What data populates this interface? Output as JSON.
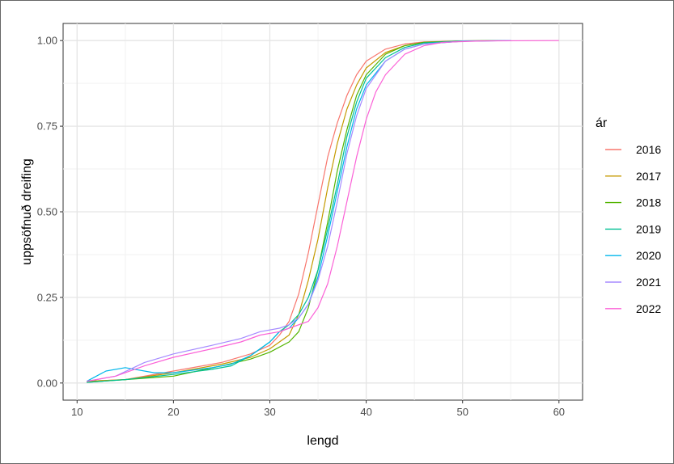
{
  "chart_data": {
    "type": "line",
    "xlabel": "lengd",
    "ylabel": "uppsöfnuð dreifing",
    "xlim": [
      11,
      60
    ],
    "ylim": [
      0,
      1
    ],
    "x_ticks": [
      10,
      20,
      30,
      40,
      50,
      60
    ],
    "x_tick_labels": [
      "10",
      "20",
      "30",
      "40",
      "50",
      "60"
    ],
    "y_ticks": [
      0,
      0.25,
      0.5,
      0.75,
      1.0
    ],
    "y_tick_labels": [
      "0.00",
      "0.25",
      "0.50",
      "0.75",
      "1.00"
    ],
    "grid": true,
    "legend_title": "ár",
    "legend_position": "right",
    "series": [
      {
        "name": "2016",
        "color": "#F8766D",
        "points": [
          [
            11,
            0.005
          ],
          [
            15,
            0.01
          ],
          [
            20,
            0.035
          ],
          [
            25,
            0.06
          ],
          [
            28,
            0.085
          ],
          [
            30,
            0.11
          ],
          [
            31,
            0.14
          ],
          [
            32,
            0.18
          ],
          [
            33,
            0.26
          ],
          [
            34,
            0.38
          ],
          [
            35,
            0.52
          ],
          [
            36,
            0.66
          ],
          [
            37,
            0.76
          ],
          [
            38,
            0.84
          ],
          [
            39,
            0.9
          ],
          [
            40,
            0.94
          ],
          [
            42,
            0.975
          ],
          [
            44,
            0.99
          ],
          [
            46,
            0.996
          ],
          [
            50,
            0.999
          ],
          [
            55,
            1.0
          ]
        ]
      },
      {
        "name": "2017",
        "color": "#C49A00",
        "points": [
          [
            11,
            0.005
          ],
          [
            15,
            0.01
          ],
          [
            20,
            0.03
          ],
          [
            25,
            0.055
          ],
          [
            28,
            0.075
          ],
          [
            30,
            0.1
          ],
          [
            32,
            0.14
          ],
          [
            33,
            0.2
          ],
          [
            34,
            0.3
          ],
          [
            35,
            0.42
          ],
          [
            36,
            0.57
          ],
          [
            37,
            0.7
          ],
          [
            38,
            0.8
          ],
          [
            39,
            0.87
          ],
          [
            40,
            0.92
          ],
          [
            42,
            0.965
          ],
          [
            44,
            0.985
          ],
          [
            46,
            0.995
          ],
          [
            50,
            0.999
          ],
          [
            55,
            1.0
          ]
        ]
      },
      {
        "name": "2018",
        "color": "#53B400",
        "points": [
          [
            11,
            0.002
          ],
          [
            15,
            0.01
          ],
          [
            20,
            0.02
          ],
          [
            25,
            0.05
          ],
          [
            28,
            0.07
          ],
          [
            30,
            0.09
          ],
          [
            32,
            0.12
          ],
          [
            33,
            0.15
          ],
          [
            34,
            0.22
          ],
          [
            35,
            0.33
          ],
          [
            36,
            0.47
          ],
          [
            37,
            0.62
          ],
          [
            38,
            0.74
          ],
          [
            39,
            0.84
          ],
          [
            40,
            0.9
          ],
          [
            42,
            0.96
          ],
          [
            44,
            0.985
          ],
          [
            46,
            0.995
          ],
          [
            50,
            0.999
          ],
          [
            55,
            1.0
          ]
        ]
      },
      {
        "name": "2019",
        "color": "#00C094",
        "points": [
          [
            11,
            0.002
          ],
          [
            15,
            0.01
          ],
          [
            20,
            0.025
          ],
          [
            24,
            0.04
          ],
          [
            26,
            0.05
          ],
          [
            28,
            0.08
          ],
          [
            30,
            0.12
          ],
          [
            31,
            0.15
          ],
          [
            32,
            0.17
          ],
          [
            33,
            0.2
          ],
          [
            34,
            0.25
          ],
          [
            35,
            0.33
          ],
          [
            36,
            0.45
          ],
          [
            37,
            0.58
          ],
          [
            38,
            0.72
          ],
          [
            39,
            0.82
          ],
          [
            40,
            0.89
          ],
          [
            42,
            0.95
          ],
          [
            44,
            0.98
          ],
          [
            46,
            0.993
          ],
          [
            50,
            0.999
          ],
          [
            55,
            1.0
          ]
        ]
      },
      {
        "name": "2020",
        "color": "#00B6EB",
        "points": [
          [
            11,
            0.005
          ],
          [
            12,
            0.02
          ],
          [
            13,
            0.035
          ],
          [
            15,
            0.045
          ],
          [
            18,
            0.03
          ],
          [
            20,
            0.03
          ],
          [
            24,
            0.045
          ],
          [
            26,
            0.055
          ],
          [
            28,
            0.08
          ],
          [
            30,
            0.12
          ],
          [
            31,
            0.15
          ],
          [
            32,
            0.16
          ],
          [
            33,
            0.19
          ],
          [
            34,
            0.23
          ],
          [
            35,
            0.31
          ],
          [
            36,
            0.43
          ],
          [
            37,
            0.56
          ],
          [
            38,
            0.69
          ],
          [
            39,
            0.8
          ],
          [
            40,
            0.87
          ],
          [
            42,
            0.94
          ],
          [
            44,
            0.975
          ],
          [
            46,
            0.99
          ],
          [
            50,
            0.998
          ],
          [
            55,
            1.0
          ]
        ]
      },
      {
        "name": "2021",
        "color": "#A58AFF",
        "points": [
          [
            11,
            0.005
          ],
          [
            14,
            0.02
          ],
          [
            17,
            0.06
          ],
          [
            20,
            0.085
          ],
          [
            24,
            0.11
          ],
          [
            27,
            0.13
          ],
          [
            29,
            0.15
          ],
          [
            31,
            0.16
          ],
          [
            32,
            0.17
          ],
          [
            33,
            0.19
          ],
          [
            34,
            0.23
          ],
          [
            35,
            0.3
          ],
          [
            36,
            0.4
          ],
          [
            37,
            0.53
          ],
          [
            38,
            0.67
          ],
          [
            39,
            0.78
          ],
          [
            40,
            0.86
          ],
          [
            42,
            0.94
          ],
          [
            44,
            0.975
          ],
          [
            46,
            0.99
          ],
          [
            50,
            0.998
          ],
          [
            55,
            1.0
          ]
        ]
      },
      {
        "name": "2022",
        "color": "#FB61D7",
        "points": [
          [
            11,
            0.005
          ],
          [
            14,
            0.02
          ],
          [
            17,
            0.05
          ],
          [
            20,
            0.075
          ],
          [
            24,
            0.1
          ],
          [
            27,
            0.12
          ],
          [
            29,
            0.14
          ],
          [
            31,
            0.15
          ],
          [
            32,
            0.16
          ],
          [
            34,
            0.18
          ],
          [
            35,
            0.22
          ],
          [
            36,
            0.29
          ],
          [
            37,
            0.4
          ],
          [
            38,
            0.53
          ],
          [
            39,
            0.66
          ],
          [
            40,
            0.77
          ],
          [
            41,
            0.85
          ],
          [
            42,
            0.9
          ],
          [
            44,
            0.96
          ],
          [
            46,
            0.985
          ],
          [
            48,
            0.995
          ],
          [
            52,
            0.999
          ],
          [
            60,
            1.0
          ]
        ]
      }
    ]
  }
}
